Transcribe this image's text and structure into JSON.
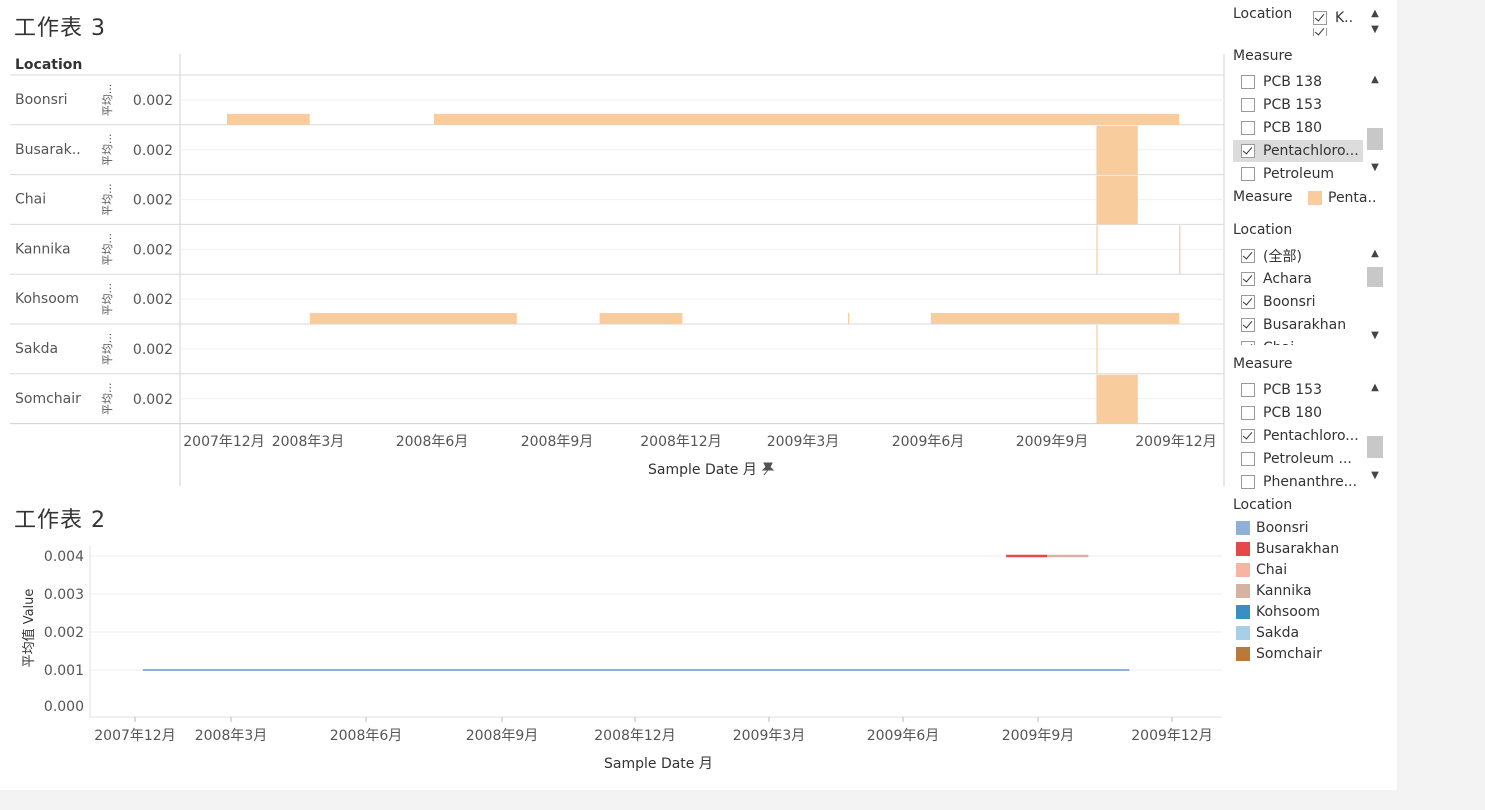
{
  "sheet3": {
    "title": "工作表 3",
    "row_header": "Location",
    "row_axis_label": "平均...",
    "rows": [
      {
        "name": "Boonsri",
        "tick": "0.002"
      },
      {
        "name": "Busarak..",
        "tick": "0.002"
      },
      {
        "name": "Chai",
        "tick": "0.002"
      },
      {
        "name": "Kannika",
        "tick": "0.002"
      },
      {
        "name": "Kohsoom",
        "tick": "0.002"
      },
      {
        "name": "Sakda",
        "tick": "0.002"
      },
      {
        "name": "Somchair",
        "tick": "0.002"
      }
    ],
    "x_ticks": [
      "2007年12月",
      "2008年3月",
      "2008年6月",
      "2008年9月",
      "2008年12月",
      "2009年3月",
      "2009年6月",
      "2009年9月",
      "2009年12月"
    ],
    "x_label": "Sample Date 月",
    "pin_icon": "pin-icon"
  },
  "sheet2": {
    "title": "工作表 2",
    "y_label": "平均值 Value",
    "x_label": "Sample Date 月",
    "y_ticks": [
      "0.004",
      "0.003",
      "0.002",
      "0.001",
      "0.000"
    ],
    "x_ticks": [
      "2007年12月",
      "2008年3月",
      "2008年6月",
      "2008年9月",
      "2008年12月",
      "2009年3月",
      "2009年6月",
      "2009年9月",
      "2009年12月"
    ]
  },
  "chart_data": [
    {
      "type": "area",
      "title": "工作表 3",
      "row_field": "Location",
      "xlabel": "Sample Date 月",
      "ylabel": "平均...",
      "color": "#f9cc9e",
      "measure": "Penta..",
      "rows": [
        {
          "location": "Boonsri",
          "segments": [
            [
              "2007-12",
              "2008-02"
            ],
            [
              "2008-05",
              "2009-11"
            ]
          ],
          "value": 0.001
        },
        {
          "location": "Busarak..",
          "segments": [
            [
              "2009-09",
              "2009-10"
            ]
          ],
          "value": 0.004
        },
        {
          "location": "Chai",
          "segments": [
            [
              "2009-09",
              "2009-10"
            ]
          ],
          "value": 0.004
        },
        {
          "location": "Kannika",
          "segments": [
            [
              "2009-09",
              "2009-09"
            ],
            [
              "2009-11",
              "2009-11"
            ]
          ],
          "value": 0.004
        },
        {
          "location": "Kohsoom",
          "segments": [
            [
              "2008-02",
              "2008-07"
            ],
            [
              "2008-09",
              "2008-11"
            ],
            [
              "2009-03",
              "2009-03"
            ],
            [
              "2009-05",
              "2009-11"
            ]
          ],
          "value": 0.001
        },
        {
          "location": "Sakda",
          "segments": [
            [
              "2009-09",
              "2009-09"
            ]
          ],
          "value": 0.004
        },
        {
          "location": "Somchair",
          "segments": [
            [
              "2009-09",
              "2009-10"
            ]
          ],
          "value": 0.004
        }
      ]
    },
    {
      "type": "line",
      "title": "工作表 2",
      "xlabel": "Sample Date 月",
      "ylabel": "平均值 Value",
      "ylim": [
        0,
        0.004
      ],
      "series": [
        {
          "name": "Boonsri",
          "color": "#8fb1d8",
          "x": [
            "2007-12",
            "2009-12"
          ],
          "values": [
            0.001,
            0.001
          ]
        },
        {
          "name": "Busarakhan",
          "color": "#e44848",
          "x": [
            "2009-09",
            "2009-10"
          ],
          "values": [
            0.004,
            0.004
          ]
        },
        {
          "name": "Kannika",
          "color": "#d5b2a2",
          "x": [
            "2009-10",
            "2009-11"
          ],
          "values": [
            0.004,
            0.004
          ]
        }
      ]
    }
  ],
  "filters": {
    "location_top": {
      "title": "Location",
      "items": [
        {
          "label": "K..",
          "checked": true
        }
      ]
    },
    "measure_1": {
      "title": "Measure",
      "items": [
        {
          "label": "PCB 138",
          "checked": false
        },
        {
          "label": "PCB 153",
          "checked": false
        },
        {
          "label": "PCB 180",
          "checked": false
        },
        {
          "label": "Pentachloro...",
          "checked": true,
          "selected": true
        },
        {
          "label": "Petroleum",
          "checked": false
        }
      ]
    },
    "measure_legend": {
      "title": "Measure",
      "label": "Penta..",
      "color": "#f9cc9e"
    },
    "location_2": {
      "title": "Location",
      "items": [
        {
          "label": "(全部)",
          "checked": true
        },
        {
          "label": "Achara",
          "checked": true
        },
        {
          "label": "Boonsri",
          "checked": true
        },
        {
          "label": "Busarakhan",
          "checked": true
        },
        {
          "label": "Chai",
          "checked": true
        }
      ]
    },
    "measure_2": {
      "title": "Measure",
      "items": [
        {
          "label": "PCB 153",
          "checked": false
        },
        {
          "label": "PCB 180",
          "checked": false
        },
        {
          "label": "Pentachloro...",
          "checked": true
        },
        {
          "label": "Petroleum ...",
          "checked": false
        },
        {
          "label": "Phenanthre...",
          "checked": false
        }
      ]
    }
  },
  "color_legend": {
    "title": "Location",
    "items": [
      {
        "label": "Boonsri",
        "color": "#8fb1d8"
      },
      {
        "label": "Busarakhan",
        "color": "#e44848"
      },
      {
        "label": "Chai",
        "color": "#f7b3a4"
      },
      {
        "label": "Kannika",
        "color": "#d5b2a2"
      },
      {
        "label": "Kohsoom",
        "color": "#3a8fc2"
      },
      {
        "label": "Sakda",
        "color": "#a8cfe8"
      },
      {
        "label": "Somchair",
        "color": "#b77a3c"
      }
    ]
  }
}
